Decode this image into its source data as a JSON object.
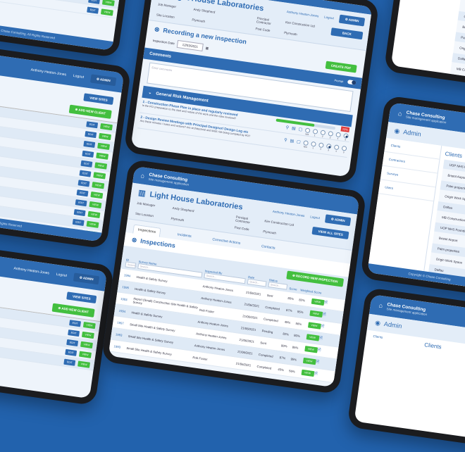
{
  "colors": {
    "background": "#2262ad",
    "primary": "#2f6cb3",
    "success": "#43bf3f",
    "danger": "#e03a3a"
  },
  "app": {
    "company": "Chase Consulting",
    "subtitle": "Site management application",
    "user": "Anthony Heaton-Jones",
    "logout": "Logout",
    "admin": "ADMIN",
    "footer": "Chase Consulting, All Rights Reserved",
    "footer_short": "Rights Reserved",
    "copyright": "Copyright © Chase Consulting"
  },
  "site": {
    "name": "Light House Laboratories",
    "fields": [
      {
        "label": "Job Manager",
        "value": "Andy Shepherd"
      },
      {
        "label": "Principal Contractor",
        "value": "Kier Construction Ltd"
      },
      {
        "label": "Site Location",
        "value": "Plymouth"
      },
      {
        "label": "Post Code",
        "value": "Plymouth"
      }
    ],
    "back": "BACK",
    "view_all_sites": "VIEW ALL SITES"
  },
  "inspection_form": {
    "title": "Recording a new inspection",
    "date_label": "Inspection Date",
    "date_value": "12/03/2021",
    "create_pdf": "CREATE PDF",
    "comments": "Comments",
    "comments_placeholder": "Enter comments",
    "prompt": "Prompt",
    "section": "General Risk Management",
    "progress_percent": 65,
    "score_badge": "13%",
    "radio_labels": [
      "N/A",
      "1",
      "2",
      "3",
      "4",
      "5"
    ],
    "questions": [
      {
        "title": "1 - Construction Phase Plan in place and regularly reviewed",
        "desc": "Is the PCI preparation to the start and nature of the work and the risks involved?",
        "selected": "5"
      },
      {
        "title": "2 - Design Review Meetings with Principal Designer/ Design Log etc",
        "desc": "Are these minutes / notes and actions? Are architectural and M&E risk being compiled by PD?",
        "selected": "3"
      }
    ]
  },
  "inspections": {
    "tabs": [
      "Inspections",
      "Incidents",
      "Corrective Actions",
      "Contacts"
    ],
    "title": "Inspections",
    "record_new": "RECORD NEW INSPECTION",
    "columns": [
      "ID",
      "Survey Name",
      "Inspected By",
      "Date",
      "Status",
      "Score",
      "Weighted Score"
    ],
    "search_placeholder": "Search...",
    "view": "VIEW",
    "rows": [
      [
        "1994",
        "Health & Safety Survey",
        "Anthony Heaton-Jones",
        "21/06/2021",
        "Sent",
        "85%",
        "82%"
      ],
      [
        "1995",
        "Health & Safety Survey",
        "Anthony Heaton-Jones",
        "21/06/2021",
        "Completed",
        "87%",
        "95%"
      ],
      [
        "1993",
        "Airport (Small) Construction Site Health & Safety Survey",
        "Rob Foster",
        "21/06/2021",
        "Completed",
        "45%",
        "56%"
      ],
      [
        "1994",
        "Health & Safety Survey",
        "Anthony Heaton-Jones",
        "21/06/2021",
        "Pending",
        "82%",
        "80%"
      ],
      [
        "1997",
        "Small Site Health & Safety Survey",
        "Anthony Heaton-Jones",
        "21/06/2021",
        "Sent",
        "80%",
        "85%"
      ],
      [
        "1993",
        "Small Site Health & Safety Survey",
        "Anthony Heaton-Jones",
        "21/06/2021",
        "Completed",
        "87%",
        "95%"
      ],
      [
        "1993",
        "Small Site Health & Safety Survey",
        "Rob Foster",
        "21/06/2021",
        "Completed",
        "45%",
        "56%"
      ]
    ]
  },
  "clients_table": {
    "view_sites": "VIEW SITES",
    "add_client": "ADD NEW CLIENT",
    "edit": "EDIT",
    "view": "VIEW"
  },
  "admin": {
    "title": "Admin",
    "menu": [
      "Clients",
      "Contractors",
      "Surveys",
      "Users"
    ],
    "clients_title": "Clients",
    "clients": [
      "UOP NHS Foundation Trust",
      "Bristol Airport",
      "Palm properties",
      "Origin Work Space",
      "Dalfau",
      "MB Construction",
      "UOP NHS Foundation Trust",
      "Bristol Airport",
      "Palm properties",
      "Origin Work Space",
      "Dalfau",
      "MB Construction"
    ]
  }
}
